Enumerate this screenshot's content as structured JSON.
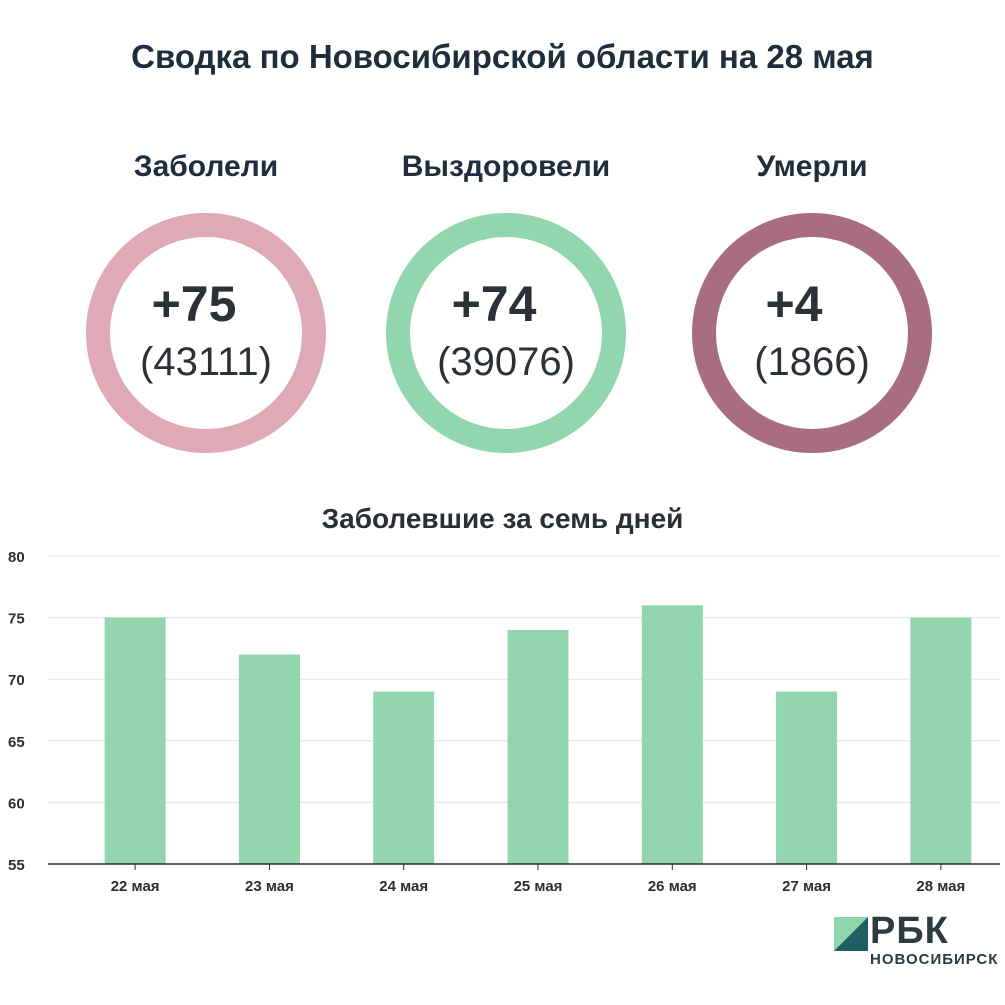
{
  "title": "Сводка по Новосибирской области на 28 мая",
  "stats": [
    {
      "label": "Заболели",
      "delta": "+75",
      "total": "(43111)",
      "color": "#dfa9b8"
    },
    {
      "label": "Выздоровели",
      "delta": "+74",
      "total": "(39076)",
      "color": "#92d6ad"
    },
    {
      "label": "Умерли",
      "delta": "+4",
      "total": "(1866)",
      "color": "#a96d83"
    }
  ],
  "logo": {
    "brand": "РБК",
    "region": "НОВОСИБИРСК",
    "mark_color_light": "#8fd5ae",
    "mark_color_dark": "#1f5f63"
  },
  "chart_data": {
    "type": "bar",
    "title": "Заболевшие за семь дней",
    "categories": [
      "22 мая",
      "23 мая",
      "24 мая",
      "25 мая",
      "26 мая",
      "27 мая",
      "28 мая"
    ],
    "values": [
      75,
      72,
      69,
      74,
      76,
      69,
      75
    ],
    "ylim": [
      55,
      80
    ],
    "yticks": [
      55,
      60,
      65,
      70,
      75,
      80
    ],
    "grid": true,
    "bar_color": "#93d6ae",
    "xlabel": "",
    "ylabel": ""
  }
}
